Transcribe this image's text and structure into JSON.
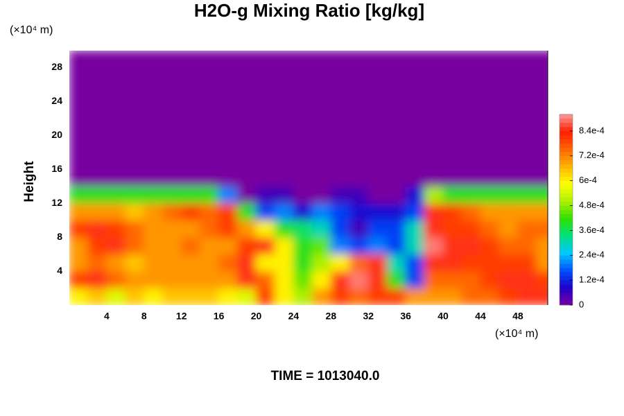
{
  "chart_data": {
    "type": "heatmap",
    "title": "H2O-g Mixing Ratio [kg/kg]",
    "xlabel_unit": "(×10⁴ m)",
    "ylabel_unit": "(×10⁴ m)",
    "ylabel": "Height",
    "footer": "TIME = 1013040.0",
    "xlim": [
      0,
      51.2
    ],
    "ylim": [
      0,
      30
    ],
    "xticks": [
      4,
      8,
      12,
      16,
      20,
      24,
      28,
      32,
      36,
      40,
      44,
      48
    ],
    "yticks": [
      4,
      8,
      12,
      16,
      20,
      24,
      28
    ],
    "zlim": [
      0,
      0.00092
    ],
    "zticks": [
      0,
      {
        "value": 0.00012,
        "label": "1.2e-4"
      },
      {
        "value": 0.00024,
        "label": "2.4e-4"
      },
      {
        "value": 0.00036,
        "label": "3.6e-4"
      },
      {
        "value": 0.00048,
        "label": "4.8e-4"
      },
      {
        "value": 0.0006,
        "label": "6e-4"
      },
      {
        "value": 0.00072,
        "label": "7.2e-4"
      },
      {
        "value": 0.00084,
        "label": "8.4e-4"
      }
    ],
    "colors": [
      "#7800a0",
      "#1e00c8",
      "#0050ff",
      "#00c8ff",
      "#00e080",
      "#30e000",
      "#b0f000",
      "#ffff00",
      "#ffb400",
      "#ff6400",
      "#ff1e00",
      "#ff9a9a"
    ],
    "x": [
      1,
      3,
      5,
      7,
      9,
      11,
      13,
      15,
      17,
      19,
      21,
      23,
      25,
      27,
      29,
      31,
      33,
      35,
      37,
      39,
      41,
      43,
      45,
      47,
      49,
      51
    ],
    "y": [
      1,
      3,
      5,
      7,
      9,
      11,
      13,
      15,
      17,
      19,
      21,
      23,
      25,
      27,
      29
    ],
    "z": [
      [
        0.0006,
        0.00065,
        0.00055,
        0.00065,
        0.0006,
        0.00065,
        0.00065,
        0.00065,
        0.0006,
        0.00055,
        0.0008,
        0.0006,
        0.0005,
        0.0007,
        0.0008,
        0.00075,
        0.0008,
        0.0008,
        0.0007,
        0.0007,
        0.0007,
        0.00075,
        0.00075,
        0.0008,
        0.00085,
        0.00085
      ],
      [
        0.0008,
        0.00085,
        0.00075,
        0.0007,
        0.0007,
        0.0007,
        0.0007,
        0.0007,
        0.0007,
        0.00085,
        0.00075,
        0.0006,
        0.00045,
        0.0006,
        0.00085,
        0.0009,
        0.00085,
        0.0004,
        0.00015,
        0.00075,
        0.00075,
        0.00075,
        0.0008,
        0.00085,
        0.00085,
        0.0008
      ],
      [
        0.0007,
        0.00075,
        0.0007,
        0.00065,
        0.0007,
        0.0007,
        0.0007,
        0.0007,
        0.00075,
        0.00085,
        0.0006,
        0.0006,
        0.0004,
        0.0005,
        0.0006,
        0.00075,
        0.00085,
        0.0003,
        0.00015,
        0.00085,
        0.00085,
        0.0008,
        0.0008,
        0.0008,
        0.0008,
        0.0007
      ],
      [
        0.0007,
        0.0008,
        0.00085,
        0.00075,
        0.0007,
        0.0007,
        0.00075,
        0.0007,
        0.0007,
        0.0008,
        0.00085,
        0.0006,
        0.0004,
        0.00045,
        0.0002,
        0.00015,
        0.0002,
        0.00015,
        0.0003,
        0.0009,
        0.00085,
        0.00085,
        0.0008,
        0.00075,
        0.00075,
        0.0007
      ],
      [
        0.0008,
        0.00085,
        0.0008,
        0.00075,
        0.0007,
        0.0007,
        0.0007,
        0.00075,
        0.0008,
        0.0007,
        0.0006,
        0.0004,
        0.00035,
        0.0003,
        0.00015,
        5e-05,
        0.00015,
        0.00015,
        0.0003,
        0.00085,
        0.0008,
        0.0008,
        0.00075,
        0.0007,
        0.00075,
        0.00075
      ],
      [
        0.0007,
        0.0007,
        0.0007,
        0.00065,
        0.0007,
        0.00075,
        0.0008,
        0.00075,
        0.0008,
        0.0004,
        0.00015,
        0.0002,
        0.0001,
        0.0002,
        0.00015,
        0.0001,
        0.0001,
        0.0001,
        0.00015,
        0.00085,
        0.0008,
        0.00075,
        0.0007,
        0.0007,
        0.0007,
        0.0007
      ],
      [
        0.0004,
        0.0004,
        0.0004,
        0.0004,
        0.0004,
        0.0004,
        0.0004,
        0.0004,
        0.0002,
        0,
        5e-05,
        5e-05,
        0,
        0,
        5e-05,
        5e-05,
        0,
        0,
        0.0001,
        0.0005,
        0.0004,
        0.0004,
        0.0004,
        0.0004,
        0.0004,
        0.0004
      ],
      [
        0,
        0,
        0,
        0,
        0,
        0,
        0,
        0,
        0,
        0,
        0,
        0,
        0,
        0,
        0,
        0,
        0,
        0,
        0,
        0,
        0,
        0,
        0,
        0,
        0,
        0
      ],
      [
        0,
        0,
        0,
        0,
        0,
        0,
        0,
        0,
        0,
        0,
        0,
        0,
        0,
        0,
        0,
        0,
        0,
        0,
        0,
        0,
        0,
        0,
        0,
        0,
        0,
        0
      ],
      [
        0,
        0,
        0,
        0,
        0,
        0,
        0,
        0,
        0,
        0,
        0,
        0,
        0,
        0,
        0,
        0,
        0,
        0,
        0,
        0,
        0,
        0,
        0,
        0,
        0,
        0
      ],
      [
        0,
        0,
        0,
        0,
        0,
        0,
        0,
        0,
        0,
        0,
        0,
        0,
        0,
        0,
        0,
        0,
        0,
        0,
        0,
        0,
        0,
        0,
        0,
        0,
        0,
        0
      ],
      [
        0,
        0,
        0,
        0,
        0,
        0,
        0,
        0,
        0,
        0,
        0,
        0,
        0,
        0,
        0,
        0,
        0,
        0,
        0,
        0,
        0,
        0,
        0,
        0,
        0,
        0
      ],
      [
        0,
        0,
        0,
        0,
        0,
        0,
        0,
        0,
        0,
        0,
        0,
        0,
        0,
        0,
        0,
        0,
        0,
        0,
        0,
        0,
        0,
        0,
        0,
        0,
        0,
        0
      ],
      [
        0,
        0,
        0,
        0,
        0,
        0,
        0,
        0,
        0,
        0,
        0,
        0,
        0,
        0,
        0,
        0,
        0,
        0,
        0,
        0,
        0,
        0,
        0,
        0,
        0,
        0
      ],
      [
        0,
        0,
        0,
        0,
        0,
        0,
        0,
        0,
        0,
        0,
        0,
        0,
        0,
        0,
        0,
        0,
        0,
        0,
        0,
        0,
        0,
        0,
        0,
        0,
        0,
        0
      ]
    ]
  }
}
